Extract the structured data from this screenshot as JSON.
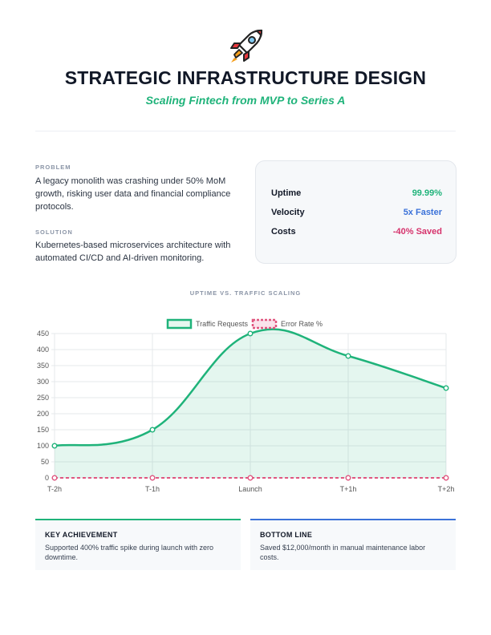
{
  "header": {
    "title": "STRATEGIC INFRASTRUCTURE DESIGN",
    "subtitle": "Scaling Fintech from MVP to Series A",
    "icon": "rocket-icon"
  },
  "problem": {
    "label": "PROBLEM",
    "text": "A legacy monolith was crashing under 50% MoM growth, risking user data and financial compliance protocols."
  },
  "solution": {
    "label": "SOLUTION",
    "text": "Kubernetes-based microservices architecture with automated CI/CD and AI-driven monitoring."
  },
  "metrics": [
    {
      "label": "Uptime",
      "value": "99.99%",
      "color": "#1fb37a"
    },
    {
      "label": "Velocity",
      "value": "5x Faster",
      "color": "#3b72d9"
    },
    {
      "label": "Costs",
      "value": "-40% Saved",
      "color": "#d6336c"
    }
  ],
  "chart_title": "UPTIME VS. TRAFFIC SCALING",
  "chart_data": {
    "type": "line",
    "categories": [
      "T-2h",
      "T-1h",
      "Launch",
      "T+1h",
      "T+2h"
    ],
    "series": [
      {
        "name": "Traffic Requests",
        "values": [
          100,
          150,
          450,
          380,
          280
        ],
        "color": "#1fb37a",
        "fill": true,
        "style": "solid"
      },
      {
        "name": "Error Rate %",
        "values": [
          0,
          0,
          0,
          0,
          0
        ],
        "color": "#e0567f",
        "fill": false,
        "style": "dashed"
      }
    ],
    "ylim": [
      0,
      450
    ],
    "yticks": [
      0,
      50,
      100,
      150,
      200,
      250,
      300,
      350,
      400,
      450
    ],
    "grid": true,
    "legend": "top-center",
    "xlabel": "",
    "ylabel": "",
    "title": ""
  },
  "cards": [
    {
      "title": "KEY ACHIEVEMENT",
      "text": "Supported 400% traffic spike during launch with zero downtime.",
      "color": "#1fb37a"
    },
    {
      "title": "BOTTOM LINE",
      "text": "Saved $12,000/month in manual maintenance labor costs.",
      "color": "#3b72d9"
    }
  ]
}
